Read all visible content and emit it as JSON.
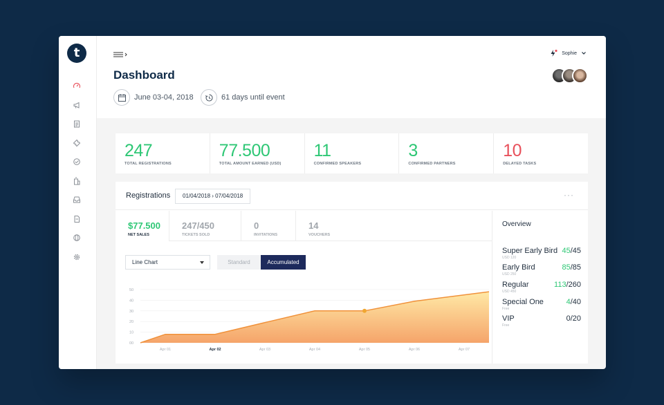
{
  "logo": "t",
  "sidebar": {
    "icons": [
      "speedometer-icon",
      "megaphone-icon",
      "clipboard-icon",
      "ticket-icon",
      "handshake-icon",
      "building-icon",
      "inbox-icon",
      "document-icon",
      "globe-icon",
      "gear-icon"
    ]
  },
  "header": {
    "title": "Dashboard",
    "date": "June 03-04, 2018",
    "countdown": "61 days until event",
    "user_name": "Sophie"
  },
  "stats": [
    {
      "value": "247",
      "label": "TOTAL REGISTRATIONS",
      "color": "#2ec775"
    },
    {
      "value": "77.500",
      "label": "TOTAL AMOUNT EARNED (USD)",
      "color": "#2ec775"
    },
    {
      "value": "11",
      "label": "CONFIRMED SPEAKERS",
      "color": "#2ec775"
    },
    {
      "value": "3",
      "label": "CONFIRMED PARTNERS",
      "color": "#2ec775"
    },
    {
      "value": "10",
      "label": "DELAYED TASKS",
      "color": "#e8505b"
    }
  ],
  "registrations": {
    "title": "Registrations",
    "date_from": "01/04/2018",
    "date_to": "07/04/2018",
    "more": "···"
  },
  "tabs": [
    {
      "value": "$77.500",
      "label": "NET SALES"
    },
    {
      "value": "247/450",
      "label": "TICKETS SOLD"
    },
    {
      "value": "0",
      "label": "INVITATIONS"
    },
    {
      "value": "14",
      "label": "VOUCHERS"
    }
  ],
  "controls": {
    "chart_type": "Line Chart",
    "standard": "Standard",
    "accumulated": "Accumulated"
  },
  "chart_data": {
    "type": "area",
    "x": [
      "Apr 01",
      "Apr 02",
      "Apr 03",
      "Apr 04",
      "Apr 05",
      "Apr 06",
      "Apr 07"
    ],
    "y_ticks": [
      "00",
      "10",
      "20",
      "30",
      "40",
      "50"
    ],
    "ylim": [
      0,
      50
    ],
    "highlight_x": "Apr 02",
    "series": [
      {
        "values": [
          8,
          8,
          19,
          30,
          30,
          39,
          48
        ]
      }
    ],
    "start_value": 0,
    "marker_index": 4,
    "color": "#f0a64a"
  },
  "overview": {
    "title": "Overview",
    "items": [
      {
        "name": "Super Early Bird",
        "price": "USD 120",
        "sold": "45",
        "total": "/45"
      },
      {
        "name": "Early Bird",
        "price": "USD 250",
        "sold": "85",
        "total": "/85"
      },
      {
        "name": "Regular",
        "price": "USD 450",
        "sold": "113",
        "total": "/260"
      },
      {
        "name": "Special One",
        "price": "Free",
        "sold": "4",
        "total": "/40"
      },
      {
        "name": "VIP",
        "price": "Free",
        "sold": "",
        "total": "0/20"
      }
    ]
  }
}
